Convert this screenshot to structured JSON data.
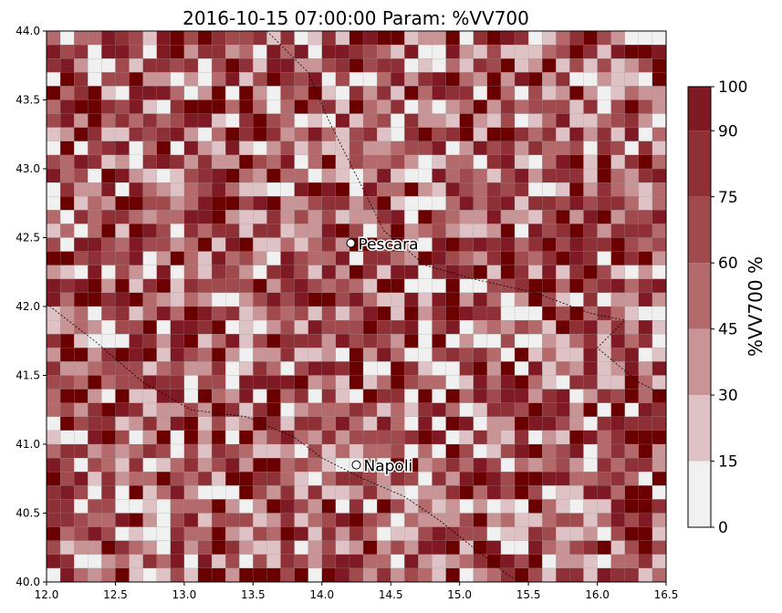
{
  "title": "2016-10-15 07:00:00 Param: %VV700",
  "map": {
    "lon_range": [
      12.0,
      16.5
    ],
    "lat_range": [
      40.0,
      44.0
    ],
    "x_ticks": [
      "12.0",
      "12.5",
      "13.0",
      "13.5",
      "14.0",
      "14.5",
      "15.0",
      "15.5",
      "16.0",
      "16.5"
    ],
    "y_ticks": [
      "40.0",
      "40.5",
      "41.0",
      "41.5",
      "42.0",
      "42.5",
      "43.0",
      "43.5",
      "44.0"
    ],
    "grid_cols": 45,
    "grid_rows": 40,
    "cities": [
      {
        "name": "Pescara",
        "lon": 14.21,
        "lat": 42.46
      },
      {
        "name": "Napoli",
        "lon": 14.25,
        "lat": 40.85
      }
    ]
  },
  "colorbar": {
    "label": "%VV700  %",
    "ticks": [
      "0",
      "15",
      "30",
      "45",
      "60",
      "75",
      "90",
      "100"
    ],
    "bounds": [
      0,
      15,
      30,
      45,
      60,
      75,
      90,
      100
    ],
    "colors": [
      "#f0f0f0",
      "#dfc2c5",
      "#c99496",
      "#b4696b",
      "#a14a4d",
      "#8f3036",
      "#7f1923",
      "#6b0000"
    ]
  }
}
